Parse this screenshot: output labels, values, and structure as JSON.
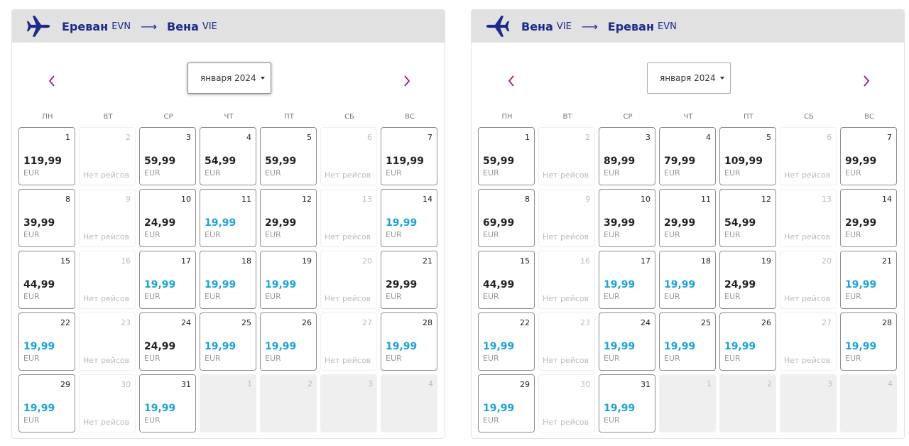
{
  "colors": {
    "accent_nav": "#b0137e",
    "brand_blue": "#1d2a8c",
    "low_price": "#1aa3dc",
    "header_bg": "#e1e1e1"
  },
  "panels": [
    {
      "route": {
        "from_city": "Ереван",
        "from_code": "EVN",
        "arrow": "⟶",
        "to_city": "Вена",
        "to_code": "VIE",
        "icon": "airplane-icon"
      },
      "month_select": {
        "value": "января 2024"
      },
      "nav": {
        "prev_icon": "chevron-left-icon",
        "next_icon": "chevron-right-icon"
      },
      "weekdays": [
        "ПН",
        "ВТ",
        "СР",
        "ЧТ",
        "ПТ",
        "СБ",
        "ВС"
      ],
      "days": [
        {
          "day": "1",
          "state": "price",
          "price": "119,99",
          "cur": "EUR",
          "low": false
        },
        {
          "day": "2",
          "state": "noflight",
          "text": "Нет рейсов"
        },
        {
          "day": "3",
          "state": "price",
          "price": "59,99",
          "cur": "EUR",
          "low": false
        },
        {
          "day": "4",
          "state": "price",
          "price": "54,99",
          "cur": "EUR",
          "low": false
        },
        {
          "day": "5",
          "state": "price",
          "price": "59,99",
          "cur": "EUR",
          "low": false
        },
        {
          "day": "6",
          "state": "noflight",
          "text": "Нет рейсов"
        },
        {
          "day": "7",
          "state": "price",
          "price": "119,99",
          "cur": "EUR",
          "low": false
        },
        {
          "day": "8",
          "state": "price",
          "price": "39,99",
          "cur": "EUR",
          "low": false
        },
        {
          "day": "9",
          "state": "noflight",
          "text": "Нет рейсов"
        },
        {
          "day": "10",
          "state": "price",
          "price": "24,99",
          "cur": "EUR",
          "low": false
        },
        {
          "day": "11",
          "state": "price",
          "price": "19,99",
          "cur": "EUR",
          "low": true
        },
        {
          "day": "12",
          "state": "price",
          "price": "29,99",
          "cur": "EUR",
          "low": false
        },
        {
          "day": "13",
          "state": "noflight",
          "text": "Нет рейсов"
        },
        {
          "day": "14",
          "state": "price",
          "price": "19,99",
          "cur": "EUR",
          "low": true
        },
        {
          "day": "15",
          "state": "price",
          "price": "44,99",
          "cur": "EUR",
          "low": false
        },
        {
          "day": "16",
          "state": "noflight",
          "text": "Нет рейсов"
        },
        {
          "day": "17",
          "state": "price",
          "price": "19,99",
          "cur": "EUR",
          "low": true
        },
        {
          "day": "18",
          "state": "price",
          "price": "19,99",
          "cur": "EUR",
          "low": true
        },
        {
          "day": "19",
          "state": "price",
          "price": "19,99",
          "cur": "EUR",
          "low": true
        },
        {
          "day": "20",
          "state": "noflight",
          "text": "Нет рейсов"
        },
        {
          "day": "21",
          "state": "price",
          "price": "29,99",
          "cur": "EUR",
          "low": false
        },
        {
          "day": "22",
          "state": "price",
          "price": "19,99",
          "cur": "EUR",
          "low": true
        },
        {
          "day": "23",
          "state": "noflight",
          "text": "Нет рейсов"
        },
        {
          "day": "24",
          "state": "price",
          "price": "24,99",
          "cur": "EUR",
          "low": false
        },
        {
          "day": "25",
          "state": "price",
          "price": "19,99",
          "cur": "EUR",
          "low": true
        },
        {
          "day": "26",
          "state": "price",
          "price": "19,99",
          "cur": "EUR",
          "low": true
        },
        {
          "day": "27",
          "state": "noflight",
          "text": "Нет рейсов"
        },
        {
          "day": "28",
          "state": "price",
          "price": "19,99",
          "cur": "EUR",
          "low": true
        },
        {
          "day": "29",
          "state": "price",
          "price": "19,99",
          "cur": "EUR",
          "low": true
        },
        {
          "day": "30",
          "state": "noflight",
          "text": "Нет рейсов"
        },
        {
          "day": "31",
          "state": "price",
          "price": "19,99",
          "cur": "EUR",
          "low": true
        },
        {
          "day": "1",
          "state": "overflow"
        },
        {
          "day": "2",
          "state": "overflow"
        },
        {
          "day": "3",
          "state": "overflow"
        },
        {
          "day": "4",
          "state": "overflow"
        }
      ]
    },
    {
      "route": {
        "from_city": "Вена",
        "from_code": "VIE",
        "arrow": "⟶",
        "to_city": "Ереван",
        "to_code": "EVN",
        "icon": "airplane-icon"
      },
      "month_select": {
        "value": "января 2024"
      },
      "nav": {
        "prev_icon": "chevron-left-icon",
        "next_icon": "chevron-right-icon"
      },
      "weekdays": [
        "ПН",
        "ВТ",
        "СР",
        "ЧТ",
        "ПТ",
        "СБ",
        "ВС"
      ],
      "days": [
        {
          "day": "1",
          "state": "price",
          "price": "59,99",
          "cur": "EUR",
          "low": false
        },
        {
          "day": "2",
          "state": "noflight",
          "text": "Нет рейсов"
        },
        {
          "day": "3",
          "state": "price",
          "price": "89,99",
          "cur": "EUR",
          "low": false
        },
        {
          "day": "4",
          "state": "price",
          "price": "79,99",
          "cur": "EUR",
          "low": false
        },
        {
          "day": "5",
          "state": "price",
          "price": "109,99",
          "cur": "EUR",
          "low": false
        },
        {
          "day": "6",
          "state": "noflight",
          "text": "Нет рейсов"
        },
        {
          "day": "7",
          "state": "price",
          "price": "99,99",
          "cur": "EUR",
          "low": false
        },
        {
          "day": "8",
          "state": "price",
          "price": "69,99",
          "cur": "EUR",
          "low": false
        },
        {
          "day": "9",
          "state": "noflight",
          "text": "Нет рейсов"
        },
        {
          "day": "10",
          "state": "price",
          "price": "39,99",
          "cur": "EUR",
          "low": false
        },
        {
          "day": "11",
          "state": "price",
          "price": "29,99",
          "cur": "EUR",
          "low": false
        },
        {
          "day": "12",
          "state": "price",
          "price": "54,99",
          "cur": "EUR",
          "low": false
        },
        {
          "day": "13",
          "state": "noflight",
          "text": "Нет рейсов"
        },
        {
          "day": "14",
          "state": "price",
          "price": "29,99",
          "cur": "EUR",
          "low": false
        },
        {
          "day": "15",
          "state": "price",
          "price": "44,99",
          "cur": "EUR",
          "low": false
        },
        {
          "day": "16",
          "state": "noflight",
          "text": "Нет рейсов"
        },
        {
          "day": "17",
          "state": "price",
          "price": "19,99",
          "cur": "EUR",
          "low": true
        },
        {
          "day": "18",
          "state": "price",
          "price": "19,99",
          "cur": "EUR",
          "low": true
        },
        {
          "day": "19",
          "state": "price",
          "price": "24,99",
          "cur": "EUR",
          "low": false
        },
        {
          "day": "20",
          "state": "noflight",
          "text": "Нет рейсов"
        },
        {
          "day": "21",
          "state": "price",
          "price": "19,99",
          "cur": "EUR",
          "low": true
        },
        {
          "day": "22",
          "state": "price",
          "price": "19,99",
          "cur": "EUR",
          "low": true
        },
        {
          "day": "23",
          "state": "noflight",
          "text": "Нет рейсов"
        },
        {
          "day": "24",
          "state": "price",
          "price": "19,99",
          "cur": "EUR",
          "low": true
        },
        {
          "day": "25",
          "state": "price",
          "price": "19,99",
          "cur": "EUR",
          "low": true
        },
        {
          "day": "26",
          "state": "price",
          "price": "19,99",
          "cur": "EUR",
          "low": true
        },
        {
          "day": "27",
          "state": "noflight",
          "text": "Нет рейсов"
        },
        {
          "day": "28",
          "state": "price",
          "price": "19,99",
          "cur": "EUR",
          "low": true
        },
        {
          "day": "29",
          "state": "price",
          "price": "19,99",
          "cur": "EUR",
          "low": true
        },
        {
          "day": "30",
          "state": "noflight",
          "text": "Нет рейсов"
        },
        {
          "day": "31",
          "state": "price",
          "price": "19,99",
          "cur": "EUR",
          "low": true
        },
        {
          "day": "1",
          "state": "overflow"
        },
        {
          "day": "2",
          "state": "overflow"
        },
        {
          "day": "3",
          "state": "overflow"
        },
        {
          "day": "4",
          "state": "overflow"
        }
      ]
    }
  ]
}
